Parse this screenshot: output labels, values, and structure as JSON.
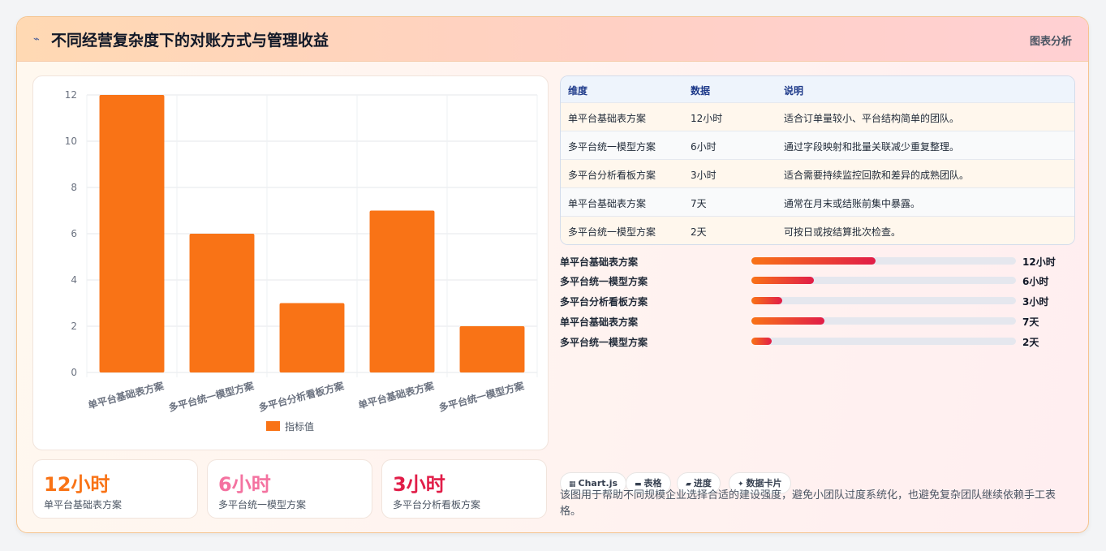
{
  "header": {
    "title": "不同经营复杂度下的对账方式与管理收益",
    "tag": "图表分析",
    "icon": "lightning-icon"
  },
  "colors": {
    "bar": "#f97316",
    "stat1": "#f97316",
    "stat2": "#f472a0",
    "stat3": "#e11d48"
  },
  "chart_data": {
    "type": "bar",
    "categories": [
      "单平台基础表方案",
      "多平台统一模型方案",
      "多平台分析看板方案",
      "单平台基础表方案",
      "多平台统一模型方案"
    ],
    "series": [
      {
        "name": "指标值",
        "values": [
          12,
          6,
          3,
          7,
          2
        ]
      }
    ],
    "ylim": [
      0,
      12
    ],
    "yticks": [
      "0",
      "2",
      "4",
      "6",
      "8",
      "10",
      "12"
    ],
    "grid": true,
    "legend": "bottom"
  },
  "stats": [
    {
      "value": "12小时",
      "label": "单平台基础表方案"
    },
    {
      "value": "6小时",
      "label": "多平台统一模型方案"
    },
    {
      "value": "3小时",
      "label": "多平台分析看板方案"
    }
  ],
  "table": {
    "headers": [
      "维度",
      "数据",
      "说明"
    ],
    "rows": [
      {
        "dim": "单平台基础表方案",
        "data": "12小时",
        "desc": "适合订单量较小、平台结构简单的团队。"
      },
      {
        "dim": "多平台统一模型方案",
        "data": "6小时",
        "desc": "通过字段映射和批量关联减少重复整理。"
      },
      {
        "dim": "多平台分析看板方案",
        "data": "3小时",
        "desc": "适合需要持续监控回款和差异的成熟团队。"
      },
      {
        "dim": "单平台基础表方案",
        "data": "7天",
        "desc": "通常在月末或结账前集中暴露。"
      },
      {
        "dim": "多平台统一模型方案",
        "data": "2天",
        "desc": "可按日或按结算批次检查。"
      }
    ]
  },
  "progress": [
    {
      "label": "单平台基础表方案",
      "value": "12小时",
      "fraction": 0.47
    },
    {
      "label": "多平台统一模型方案",
      "value": "6小时",
      "fraction": 0.235
    },
    {
      "label": "多平台分析看板方案",
      "value": "3小时",
      "fraction": 0.118
    },
    {
      "label": "单平台基础表方案",
      "value": "7天",
      "fraction": 0.275
    },
    {
      "label": "多平台统一模型方案",
      "value": "2天",
      "fraction": 0.078
    }
  ],
  "chips": [
    {
      "icon": "chart-icon",
      "glyph": "▦",
      "label": "Chart.js"
    },
    {
      "icon": "table-icon",
      "glyph": "▬",
      "label": "表格"
    },
    {
      "icon": "progress-icon",
      "glyph": "▰",
      "label": "进度"
    },
    {
      "icon": "sparkle-icon",
      "glyph": "✦",
      "label": "数据卡片"
    }
  ],
  "note": "该图用于帮助不同规模企业选择合适的建设强度，避免小团队过度系统化，也避免复杂团队继续依赖手工表格。"
}
